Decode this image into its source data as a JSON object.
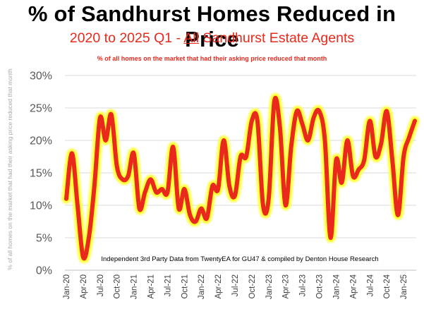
{
  "chart_data": {
    "type": "line",
    "title": "% of Sandhurst Homes Reduced in Price",
    "subtitle_before": "2020 to 2025 Q1 - ",
    "subtitle_underlined": "All",
    "subtitle_after": " Sandhurst Estate Agents",
    "note": "% of all homes on the market that had their asking price reduced that month",
    "ylabel": "% of all homes on the market that had their asking price reduced that month",
    "source": "Independent 3rd Party Data from TwentyEA for GU47 & compiled by Denton House Research",
    "ylim": [
      0,
      30
    ],
    "yticks": [
      "0%",
      "5%",
      "10%",
      "15%",
      "20%",
      "25%",
      "30%"
    ],
    "xticks": [
      "Jan-20",
      "Apr-20",
      "Jul-20",
      "Oct-20",
      "Jan-21",
      "Apr-21",
      "Jul-21",
      "Oct-21",
      "Jan-22",
      "Apr-22",
      "Jul-22",
      "Oct-22",
      "Jan-23",
      "Apr-23",
      "Jul-23",
      "Oct-23",
      "Jan-24",
      "Apr-24",
      "Jul-24",
      "Oct-24",
      "Jan-25"
    ],
    "series": [
      {
        "name": "% reduced",
        "color": "#e8291c",
        "glow": "#ffff33",
        "values": [
          11,
          18,
          10,
          2,
          5,
          13,
          23.5,
          20,
          24,
          16,
          14,
          14.5,
          18,
          9.5,
          12,
          14,
          12,
          12.5,
          12,
          19,
          9.5,
          12.5,
          8.5,
          7.5,
          9.5,
          8,
          13,
          12.5,
          20,
          13,
          11.5,
          17.5,
          17.5,
          23,
          23,
          10,
          11,
          26,
          22,
          10,
          19,
          24.5,
          22.5,
          20,
          23.5,
          24.5,
          20,
          5,
          17,
          13.5,
          20,
          14.5,
          15.5,
          17,
          23,
          17.5,
          19.5,
          24.5,
          17,
          8.5,
          17.5,
          20.5,
          23
        ]
      }
    ]
  }
}
